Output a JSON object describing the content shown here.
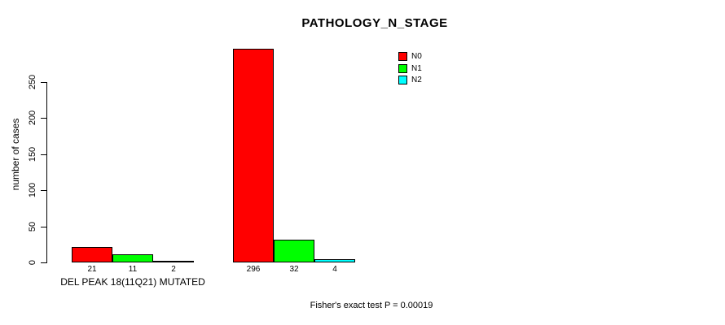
{
  "chart_data": {
    "type": "bar",
    "title": "PATHOLOGY_N_STAGE",
    "ylabel": "number of cases",
    "xlabel": "",
    "ylim": [
      0,
      250
    ],
    "yticks": [
      0,
      50,
      100,
      150,
      200,
      250
    ],
    "categories": [
      "DEL PEAK 18(11Q21) MUTATED",
      ""
    ],
    "series": [
      {
        "name": "N0",
        "color": "#ff0000",
        "values": [
          21,
          296
        ]
      },
      {
        "name": "N1",
        "color": "#00ff00",
        "values": [
          11,
          32
        ]
      },
      {
        "name": "N2",
        "color": "#00ffff",
        "values": [
          2,
          4
        ]
      }
    ],
    "legend_position": "top-right",
    "grid": false,
    "annotation": "Fisher's exact test P = 0.00019"
  },
  "colors": {
    "background": "#ffffff",
    "axis": "#000000",
    "bar_border": "#000000",
    "text": "#000000"
  }
}
